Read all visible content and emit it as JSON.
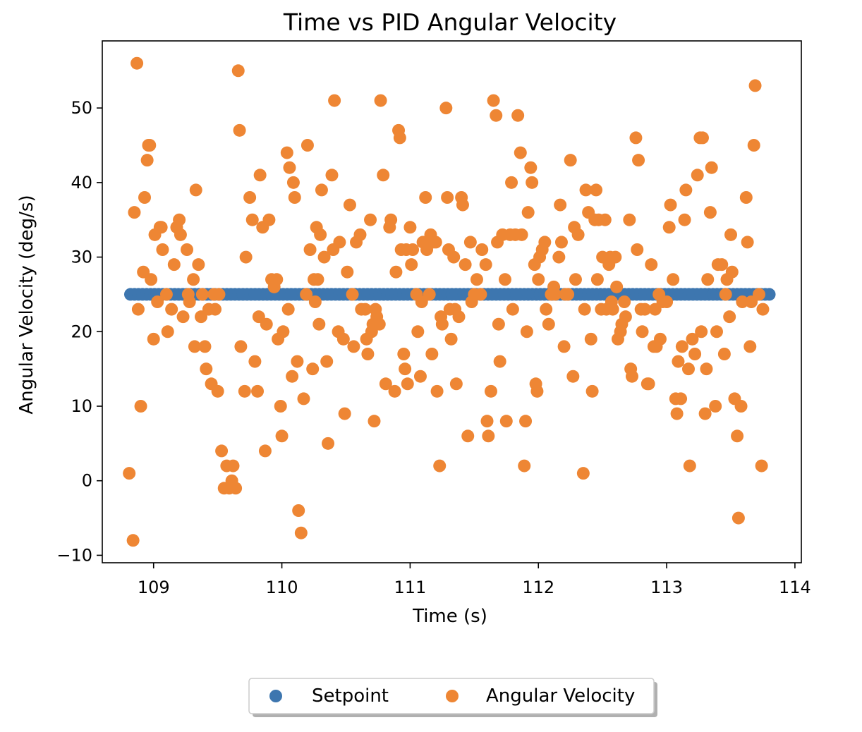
{
  "chart_data": {
    "type": "scatter",
    "title": "Time vs PID Angular Velocity",
    "xlabel": "Time (s)",
    "ylabel": "Angular Velocity (deg/s)",
    "xlim": [
      108.6,
      114.05
    ],
    "ylim": [
      -11,
      59
    ],
    "xticks": [
      109,
      110,
      111,
      112,
      113,
      114
    ],
    "yticks": [
      -10,
      0,
      10,
      20,
      30,
      40,
      50
    ],
    "ytick_labels": [
      "−10",
      "0",
      "10",
      "20",
      "30",
      "40",
      "50"
    ],
    "grid": false,
    "legend": {
      "position": "bottom-center",
      "columns": 2,
      "shadow": true
    },
    "series": [
      {
        "name": "Setpoint",
        "color": "#3d76af",
        "x_range": [
          108.82,
          113.8
        ],
        "count": 160,
        "value": 25
      },
      {
        "name": "Angular Velocity",
        "color": "#ee8634",
        "points": [
          [
            108.81,
            1
          ],
          [
            108.84,
            -8
          ],
          [
            108.85,
            36
          ],
          [
            108.87,
            56
          ],
          [
            108.88,
            23
          ],
          [
            108.9,
            10
          ],
          [
            108.92,
            28
          ],
          [
            108.93,
            38
          ],
          [
            108.95,
            43
          ],
          [
            108.96,
            45
          ],
          [
            108.97,
            45
          ],
          [
            108.98,
            27
          ],
          [
            109.0,
            19
          ],
          [
            109.01,
            33
          ],
          [
            109.03,
            24
          ],
          [
            109.05,
            34
          ],
          [
            109.06,
            34
          ],
          [
            109.07,
            31
          ],
          [
            109.1,
            25
          ],
          [
            109.11,
            20
          ],
          [
            109.14,
            23
          ],
          [
            109.16,
            29
          ],
          [
            109.18,
            34
          ],
          [
            109.2,
            35
          ],
          [
            109.21,
            33
          ],
          [
            109.23,
            22
          ],
          [
            109.26,
            31
          ],
          [
            109.27,
            25
          ],
          [
            109.28,
            24
          ],
          [
            109.31,
            27
          ],
          [
            109.32,
            18
          ],
          [
            109.33,
            39
          ],
          [
            109.35,
            29
          ],
          [
            109.37,
            22
          ],
          [
            109.38,
            25
          ],
          [
            109.4,
            18
          ],
          [
            109.41,
            15
          ],
          [
            109.43,
            23
          ],
          [
            109.45,
            13
          ],
          [
            109.47,
            25
          ],
          [
            109.48,
            23
          ],
          [
            109.5,
            12
          ],
          [
            109.51,
            25
          ],
          [
            109.53,
            4
          ],
          [
            109.55,
            -1
          ],
          [
            109.57,
            2
          ],
          [
            109.59,
            -1
          ],
          [
            109.61,
            0
          ],
          [
            109.62,
            2
          ],
          [
            109.64,
            -1
          ],
          [
            109.66,
            55
          ],
          [
            109.67,
            47
          ],
          [
            109.68,
            18
          ],
          [
            109.71,
            12
          ],
          [
            109.72,
            30
          ],
          [
            109.75,
            38
          ],
          [
            109.77,
            35
          ],
          [
            109.79,
            16
          ],
          [
            109.81,
            12
          ],
          [
            109.82,
            22
          ],
          [
            109.83,
            41
          ],
          [
            109.85,
            34
          ],
          [
            109.87,
            4
          ],
          [
            109.88,
            21
          ],
          [
            109.9,
            35
          ],
          [
            109.92,
            27
          ],
          [
            109.94,
            26
          ],
          [
            109.96,
            27
          ],
          [
            109.97,
            19
          ],
          [
            109.99,
            10
          ],
          [
            110.0,
            6
          ],
          [
            110.01,
            20
          ],
          [
            110.04,
            44
          ],
          [
            110.05,
            23
          ],
          [
            110.06,
            42
          ],
          [
            110.08,
            14
          ],
          [
            110.09,
            40
          ],
          [
            110.1,
            38
          ],
          [
            110.12,
            16
          ],
          [
            110.13,
            -4
          ],
          [
            110.15,
            -7
          ],
          [
            110.17,
            11
          ],
          [
            110.19,
            25
          ],
          [
            110.2,
            45
          ],
          [
            110.22,
            31
          ],
          [
            110.24,
            15
          ],
          [
            110.25,
            27
          ],
          [
            110.26,
            24
          ],
          [
            110.27,
            34
          ],
          [
            110.28,
            27
          ],
          [
            110.29,
            21
          ],
          [
            110.3,
            33
          ],
          [
            110.31,
            39
          ],
          [
            110.33,
            30
          ],
          [
            110.35,
            16
          ],
          [
            110.36,
            5
          ],
          [
            110.39,
            41
          ],
          [
            110.4,
            31
          ],
          [
            110.41,
            51
          ],
          [
            110.44,
            20
          ],
          [
            110.45,
            32
          ],
          [
            110.48,
            19
          ],
          [
            110.49,
            9
          ],
          [
            110.51,
            28
          ],
          [
            110.53,
            37
          ],
          [
            110.55,
            25
          ],
          [
            110.56,
            18
          ],
          [
            110.58,
            32
          ],
          [
            110.61,
            33
          ],
          [
            110.62,
            23
          ],
          [
            110.65,
            23
          ],
          [
            110.66,
            19
          ],
          [
            110.67,
            17
          ],
          [
            110.69,
            35
          ],
          [
            110.7,
            20
          ],
          [
            110.71,
            21
          ],
          [
            110.72,
            8
          ],
          [
            110.73,
            23
          ],
          [
            110.74,
            22
          ],
          [
            110.76,
            21
          ],
          [
            110.77,
            51
          ],
          [
            110.79,
            41
          ],
          [
            110.81,
            13
          ],
          [
            110.84,
            34
          ],
          [
            110.85,
            35
          ],
          [
            110.88,
            12
          ],
          [
            110.89,
            28
          ],
          [
            110.91,
            47
          ],
          [
            110.92,
            46
          ],
          [
            110.93,
            31
          ],
          [
            110.95,
            17
          ],
          [
            110.96,
            15
          ],
          [
            110.97,
            31
          ],
          [
            110.98,
            13
          ],
          [
            111.0,
            34
          ],
          [
            111.01,
            29
          ],
          [
            111.02,
            31
          ],
          [
            111.05,
            25
          ],
          [
            111.06,
            20
          ],
          [
            111.08,
            14
          ],
          [
            111.09,
            24
          ],
          [
            111.1,
            32
          ],
          [
            111.12,
            38
          ],
          [
            111.13,
            31
          ],
          [
            111.15,
            25
          ],
          [
            111.16,
            33
          ],
          [
            111.17,
            17
          ],
          [
            111.18,
            32
          ],
          [
            111.2,
            32
          ],
          [
            111.21,
            12
          ],
          [
            111.23,
            2
          ],
          [
            111.24,
            22
          ],
          [
            111.25,
            21
          ],
          [
            111.28,
            50
          ],
          [
            111.29,
            38
          ],
          [
            111.3,
            31
          ],
          [
            111.31,
            23
          ],
          [
            111.32,
            19
          ],
          [
            111.34,
            30
          ],
          [
            111.35,
            23
          ],
          [
            111.36,
            13
          ],
          [
            111.38,
            22
          ],
          [
            111.4,
            38
          ],
          [
            111.41,
            37
          ],
          [
            111.43,
            29
          ],
          [
            111.45,
            6
          ],
          [
            111.47,
            32
          ],
          [
            111.48,
            24
          ],
          [
            111.5,
            25
          ],
          [
            111.52,
            27
          ],
          [
            111.55,
            25
          ],
          [
            111.56,
            31
          ],
          [
            111.59,
            29
          ],
          [
            111.6,
            8
          ],
          [
            111.61,
            6
          ],
          [
            111.63,
            12
          ],
          [
            111.65,
            51
          ],
          [
            111.67,
            49
          ],
          [
            111.68,
            32
          ],
          [
            111.69,
            21
          ],
          [
            111.7,
            16
          ],
          [
            111.72,
            33
          ],
          [
            111.74,
            27
          ],
          [
            111.75,
            8
          ],
          [
            111.78,
            33
          ],
          [
            111.79,
            40
          ],
          [
            111.8,
            23
          ],
          [
            111.82,
            33
          ],
          [
            111.84,
            49
          ],
          [
            111.86,
            44
          ],
          [
            111.87,
            33
          ],
          [
            111.89,
            2
          ],
          [
            111.9,
            8
          ],
          [
            111.91,
            20
          ],
          [
            111.92,
            36
          ],
          [
            111.94,
            42
          ],
          [
            111.95,
            40
          ],
          [
            111.97,
            29
          ],
          [
            111.98,
            13
          ],
          [
            111.99,
            12
          ],
          [
            112.0,
            27
          ],
          [
            112.01,
            30
          ],
          [
            112.03,
            31
          ],
          [
            112.05,
            32
          ],
          [
            112.06,
            23
          ],
          [
            112.08,
            21
          ],
          [
            112.1,
            25
          ],
          [
            112.12,
            26
          ],
          [
            112.13,
            25
          ],
          [
            112.16,
            30
          ],
          [
            112.17,
            37
          ],
          [
            112.18,
            32
          ],
          [
            112.2,
            18
          ],
          [
            112.21,
            25
          ],
          [
            112.23,
            25
          ],
          [
            112.25,
            43
          ],
          [
            112.27,
            14
          ],
          [
            112.28,
            34
          ],
          [
            112.29,
            27
          ],
          [
            112.31,
            33
          ],
          [
            112.35,
            1
          ],
          [
            112.36,
            23
          ],
          [
            112.37,
            39
          ],
          [
            112.39,
            36
          ],
          [
            112.41,
            19
          ],
          [
            112.42,
            12
          ],
          [
            112.44,
            35
          ],
          [
            112.45,
            39
          ],
          [
            112.46,
            27
          ],
          [
            112.47,
            35
          ],
          [
            112.49,
            23
          ],
          [
            112.5,
            30
          ],
          [
            112.52,
            35
          ],
          [
            112.53,
            23
          ],
          [
            112.55,
            29
          ],
          [
            112.56,
            30
          ],
          [
            112.57,
            24
          ],
          [
            112.58,
            23
          ],
          [
            112.6,
            30
          ],
          [
            112.61,
            26
          ],
          [
            112.62,
            19
          ],
          [
            112.64,
            20
          ],
          [
            112.65,
            21
          ],
          [
            112.67,
            24
          ],
          [
            112.68,
            22
          ],
          [
            112.71,
            35
          ],
          [
            112.72,
            15
          ],
          [
            112.73,
            14
          ],
          [
            112.76,
            46
          ],
          [
            112.77,
            31
          ],
          [
            112.78,
            43
          ],
          [
            112.8,
            23
          ],
          [
            112.81,
            20
          ],
          [
            112.83,
            23
          ],
          [
            112.85,
            13
          ],
          [
            112.86,
            13
          ],
          [
            112.88,
            29
          ],
          [
            112.9,
            18
          ],
          [
            112.91,
            23
          ],
          [
            112.92,
            18
          ],
          [
            112.94,
            25
          ],
          [
            112.95,
            19
          ],
          [
            112.97,
            24
          ],
          [
            113.0,
            24
          ],
          [
            113.02,
            34
          ],
          [
            113.03,
            37
          ],
          [
            113.05,
            27
          ],
          [
            113.07,
            11
          ],
          [
            113.08,
            9
          ],
          [
            113.09,
            16
          ],
          [
            113.11,
            11
          ],
          [
            113.12,
            18
          ],
          [
            113.14,
            35
          ],
          [
            113.15,
            39
          ],
          [
            113.17,
            15
          ],
          [
            113.18,
            2
          ],
          [
            113.2,
            19
          ],
          [
            113.22,
            17
          ],
          [
            113.24,
            41
          ],
          [
            113.26,
            46
          ],
          [
            113.27,
            20
          ],
          [
            113.28,
            46
          ],
          [
            113.3,
            9
          ],
          [
            113.31,
            15
          ],
          [
            113.32,
            27
          ],
          [
            113.34,
            36
          ],
          [
            113.35,
            42
          ],
          [
            113.38,
            10
          ],
          [
            113.39,
            20
          ],
          [
            113.4,
            29
          ],
          [
            113.43,
            29
          ],
          [
            113.45,
            17
          ],
          [
            113.46,
            25
          ],
          [
            113.47,
            27
          ],
          [
            113.49,
            22
          ],
          [
            113.5,
            33
          ],
          [
            113.51,
            28
          ],
          [
            113.53,
            11
          ],
          [
            113.55,
            6
          ],
          [
            113.56,
            -5
          ],
          [
            113.58,
            10
          ],
          [
            113.59,
            24
          ],
          [
            113.62,
            38
          ],
          [
            113.63,
            32
          ],
          [
            113.65,
            18
          ],
          [
            113.66,
            24
          ],
          [
            113.68,
            45
          ],
          [
            113.69,
            53
          ],
          [
            113.72,
            25
          ],
          [
            113.74,
            2
          ],
          [
            113.75,
            23
          ]
        ]
      }
    ]
  }
}
